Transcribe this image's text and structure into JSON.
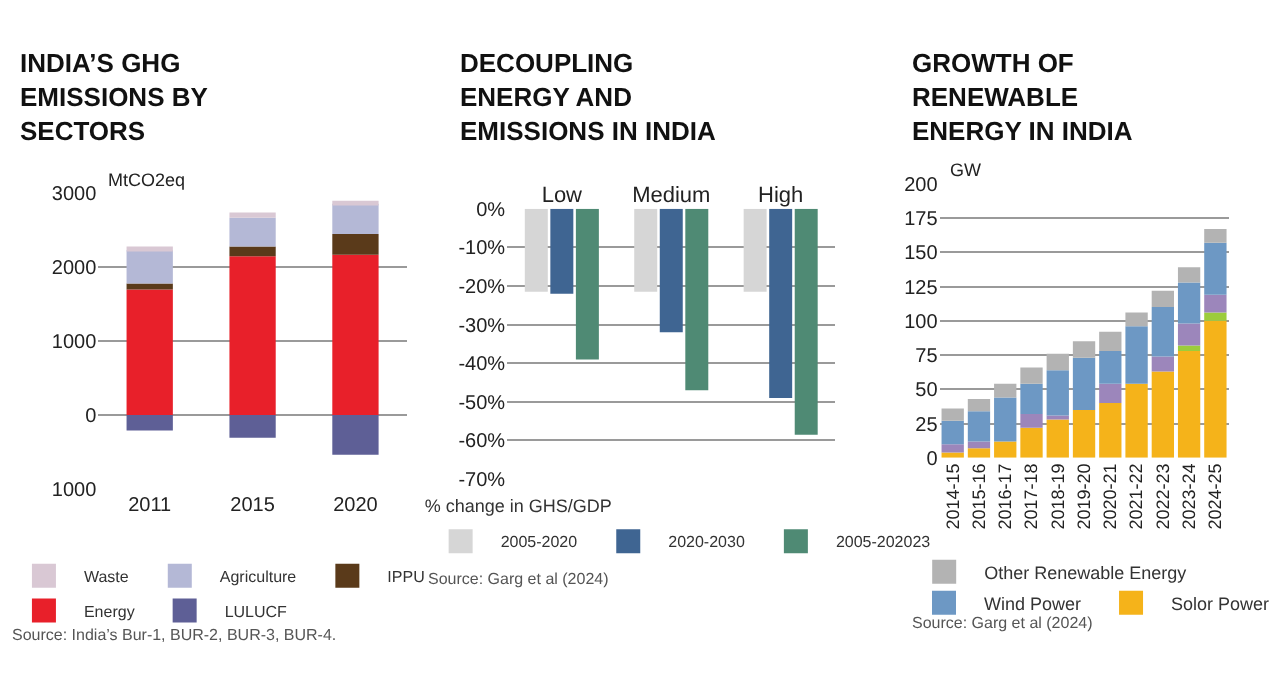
{
  "chart_data": [
    {
      "type": "bar",
      "title": "INDIA’S GHG EMISSIONS BY SECTORS",
      "ylabel": "MtCO2eq",
      "categories": [
        "2011",
        "2015",
        "2020"
      ],
      "stacked": true,
      "series": [
        {
          "name": "Energy",
          "color": "#e8202a",
          "values": [
            1700,
            2150,
            2170
          ]
        },
        {
          "name": "IPPU",
          "color": "#5a3a1a",
          "values": [
            80,
            130,
            280
          ]
        },
        {
          "name": "Agriculture",
          "color": "#b4b8d6",
          "values": [
            450,
            390,
            410
          ]
        },
        {
          "name": "Waste",
          "color": "#d9c8d4",
          "values": [
            50,
            70,
            40
          ]
        },
        {
          "name": "LULUCF",
          "color": "#5e5f96",
          "values": [
            -210,
            -310,
            -540
          ]
        }
      ],
      "ylim": [
        -1000,
        3000
      ],
      "yticks": [
        3000,
        2000,
        1000,
        0,
        {
          "value": -1000,
          "label": "1000"
        }
      ],
      "grid": "y",
      "legend": "bottom",
      "annotations": [
        "Source: India’s Bur-1, BUR-2, BUR-3, BUR-4."
      ]
    },
    {
      "type": "bar",
      "title": "DECOUPLING ENERGY AND EMISSIONS IN INDIA",
      "categories": [
        "Low",
        "Medium",
        "High"
      ],
      "legend_title": "% change in GHS/GDP",
      "series": [
        {
          "name": "2005-2020",
          "color": "#d6d6d6",
          "values": [
            -21.5,
            -21.5,
            -21.5
          ]
        },
        {
          "name": "2020-2030",
          "color": "#3f6592",
          "values": [
            -22,
            -32,
            -49
          ]
        },
        {
          "name": "2005-202023",
          "color": "#4f8a74",
          "values": [
            -39,
            -47,
            -58.5
          ]
        }
      ],
      "ylim": [
        -70,
        0
      ],
      "yticks": [
        {
          "value": 0,
          "label": "0%"
        },
        {
          "value": -10,
          "label": "-10%"
        },
        {
          "value": -20,
          "label": "-20%"
        },
        {
          "value": -30,
          "label": "-30%"
        },
        {
          "value": -40,
          "label": "-40%"
        },
        {
          "value": -50,
          "label": "-50%"
        },
        {
          "value": -60,
          "label": "-60%"
        },
        {
          "value": -70,
          "label": "-70%"
        }
      ],
      "grid": "y",
      "legend": "bottom",
      "annotations": [
        "Source: Garg et al (2024)"
      ]
    },
    {
      "type": "bar",
      "title": "GROWTH OF RENEWABLE ENERGY IN INDIA",
      "ylabel": "GW",
      "categories": [
        "2014-15",
        "2015-16",
        "2016-17",
        "2017-18",
        "2018-19",
        "2019-20",
        "2020-21",
        "2021-22",
        "2022-23",
        "2023-24",
        "2024-25"
      ],
      "stacked": true,
      "series": [
        {
          "name": "Solor Power",
          "color": "#f5b31a",
          "values": [
            4,
            7,
            12,
            22,
            28,
            35,
            40,
            54,
            63,
            78,
            100
          ]
        },
        {
          "color": "#9ccc3c",
          "values": [
            0,
            0,
            0,
            0,
            0,
            0,
            0,
            0,
            0,
            4,
            6
          ]
        },
        {
          "color": "#9c86bb",
          "values": [
            6,
            5,
            0,
            10,
            3,
            0,
            14,
            0,
            11,
            16,
            13
          ]
        },
        {
          "name": "Wind Power",
          "color": "#6d98c4",
          "values": [
            17,
            22,
            32,
            22,
            33,
            38,
            24,
            42,
            36,
            30,
            38
          ]
        },
        {
          "name": "Other Renewable Energy",
          "color": "#b3b3b3",
          "values": [
            9,
            9,
            10,
            12,
            12,
            12,
            14,
            10,
            12,
            11,
            10
          ]
        }
      ],
      "ylim": [
        0,
        200
      ],
      "yticks": [
        0,
        25,
        50,
        75,
        100,
        125,
        150,
        175,
        200
      ],
      "grid": "y",
      "legend": "bottom",
      "annotations": [
        "Source: Garg et al (2024)"
      ]
    }
  ]
}
